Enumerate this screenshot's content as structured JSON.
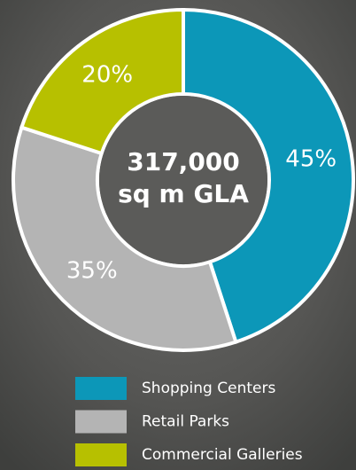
{
  "chart_data": {
    "type": "donut",
    "center_text": [
      "317,000",
      "sq m GLA"
    ],
    "categories": [
      "Shopping Centers",
      "Retail Parks",
      "Commercial Galleries"
    ],
    "values": [
      45,
      35,
      20
    ],
    "value_labels": [
      "45%",
      "35%",
      "20%"
    ],
    "colors": [
      "#0c97b8",
      "#b4b4b4",
      "#b7c000"
    ]
  }
}
